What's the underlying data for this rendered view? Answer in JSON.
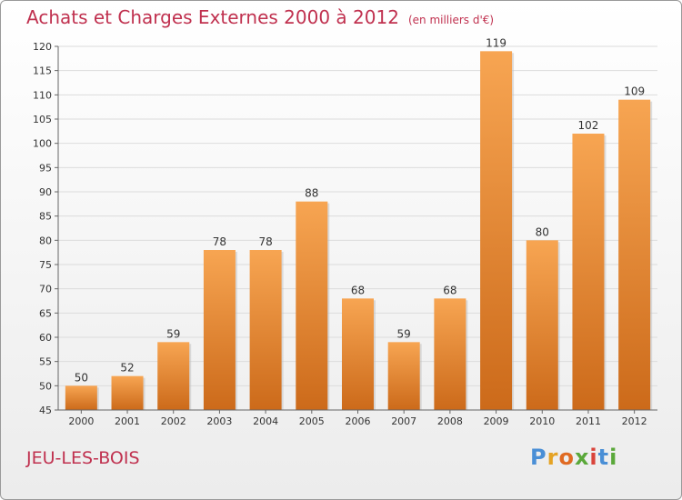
{
  "header": {
    "title": "Achats et Charges Externes 2000 à 2012",
    "unit": "(en milliers d'€)"
  },
  "footer": {
    "commune": "JEU-LES-BOIS",
    "logo_letters": [
      "P",
      "r",
      "o",
      "x",
      "i",
      "t",
      "i"
    ]
  },
  "colors": {
    "bar_top": "#f7a552",
    "bar_bottom": "#cc6a1a",
    "title": "#c0314f"
  },
  "chart_data": {
    "type": "bar",
    "title": "Achats et Charges Externes 2000 à 2012",
    "subtitle": "(en milliers d'€)",
    "categories": [
      "2000",
      "2001",
      "2002",
      "2003",
      "2004",
      "2005",
      "2006",
      "2007",
      "2008",
      "2009",
      "2010",
      "2011",
      "2012"
    ],
    "values": [
      50,
      52,
      59,
      78,
      78,
      88,
      68,
      59,
      68,
      119,
      80,
      102,
      109
    ],
    "ylim": [
      45,
      120
    ],
    "yticks": [
      45,
      50,
      55,
      60,
      65,
      70,
      75,
      80,
      85,
      90,
      95,
      100,
      105,
      110,
      115,
      120
    ],
    "grid": true,
    "legend": "none"
  }
}
